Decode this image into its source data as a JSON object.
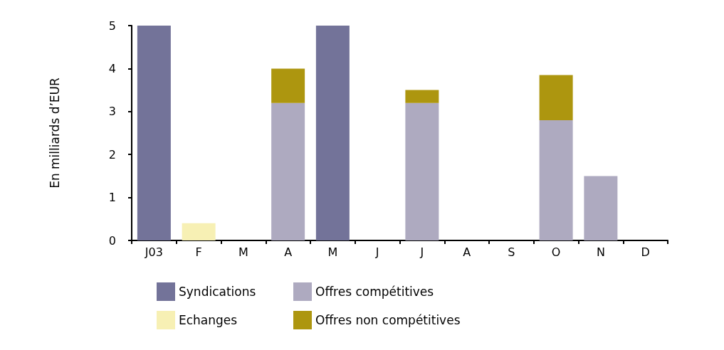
{
  "chart_data": {
    "type": "bar",
    "ylabel": "En milliards d’EUR",
    "categories": [
      "J03",
      "F",
      "M",
      "A",
      "M",
      "J",
      "J",
      "A",
      "S",
      "O",
      "N",
      "D"
    ],
    "series": [
      {
        "name": "Syndications",
        "color": "#737399",
        "values": [
          5,
          null,
          null,
          null,
          5,
          null,
          null,
          null,
          null,
          null,
          null,
          null
        ]
      },
      {
        "name": "Echanges",
        "color": "#f7f0b4",
        "values": [
          null,
          0.4,
          null,
          null,
          null,
          null,
          null,
          null,
          null,
          null,
          null,
          null
        ]
      },
      {
        "name": "Offres compétitives",
        "color": "#aeaac0",
        "values": [
          null,
          null,
          null,
          3.2,
          null,
          null,
          3.2,
          null,
          null,
          2.8,
          1.5,
          null
        ]
      },
      {
        "name": "Offres non compétitives",
        "color": "#ad960f",
        "values": [
          null,
          null,
          null,
          0.8,
          null,
          null,
          0.3,
          null,
          null,
          1.05,
          null,
          null
        ]
      }
    ],
    "stacked": true,
    "ylim": [
      0,
      5
    ],
    "yticks": [
      0,
      1,
      2,
      3,
      4,
      5
    ],
    "grid": false,
    "legend": "bottom"
  }
}
